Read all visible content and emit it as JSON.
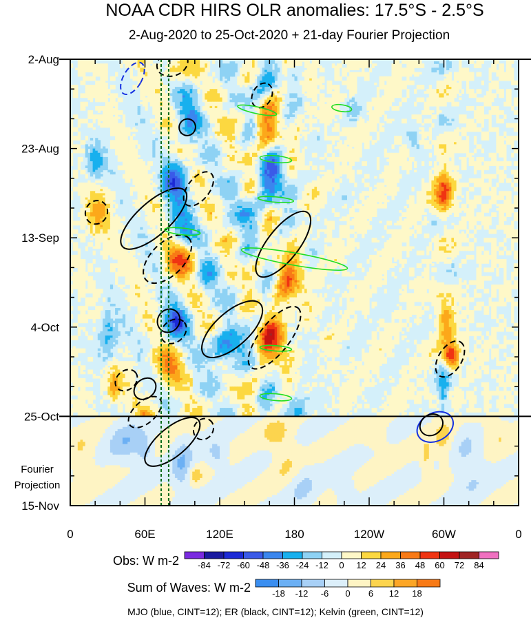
{
  "chart_data": {
    "type": "heatmap",
    "title": "NOAA CDR HIRS OLR anomalies: 17.5°S - 2.5°S",
    "subtitle": "2-Aug-2020 to 25-Oct-2020 + 21-day Fourier Projection",
    "y_tick_labels": [
      "2-Aug",
      "23-Aug",
      "13-Sep",
      "4-Oct",
      "25-Oct",
      "15-Nov"
    ],
    "y_tick_days": [
      0,
      21,
      42,
      63,
      84,
      105
    ],
    "projection_start_day": 84,
    "projection_label": [
      "Fourier",
      "Projection"
    ],
    "x_tick_labels": [
      "0",
      "60E",
      "120E",
      "180",
      "120W",
      "60W",
      "0"
    ],
    "x_tick_lon": [
      0,
      60,
      120,
      180,
      240,
      300,
      360
    ],
    "xlim": [
      0,
      360
    ],
    "ylim_days": [
      0,
      105
    ],
    "reference_lines_lon": [
      73,
      79
    ],
    "obs_colorbar": {
      "label": "Obs: W m-2",
      "levels": [
        -84,
        -72,
        -60,
        -48,
        -36,
        -24,
        -12,
        0,
        12,
        24,
        36,
        48,
        60,
        72,
        84
      ],
      "colors": [
        "#7a2ae0",
        "#1a1aa0",
        "#1c2ad6",
        "#3a5ae8",
        "#3a86ee",
        "#18b0ee",
        "#8ed2f4",
        "#d4f0fa",
        "#fef8c8",
        "#fcd840",
        "#fca81a",
        "#f87a16",
        "#f03412",
        "#c41212",
        "#a02424",
        "#f070c0"
      ]
    },
    "waves_colorbar": {
      "label": "Sum of Waves: W m-2",
      "levels": [
        -18,
        -12,
        -6,
        0,
        6,
        12,
        18
      ],
      "colors": [
        "#3a8ef0",
        "#6cb0f4",
        "#a8d0f6",
        "#dceffa",
        "#fef4c4",
        "#fcd44e",
        "#fca626",
        "#f87a16"
      ]
    },
    "legend_text": "MJO (blue, CINT=12); ER (black, CINT=12); Kelvin (green, CINT=12)",
    "contours": [
      {
        "wave": "MJO",
        "color": "#1530e0",
        "style": "dashed",
        "cx": 50,
        "cy": 4.5,
        "rx": 4.6,
        "ry": 2.6,
        "angle": 30
      },
      {
        "wave": "MJO",
        "color": "#1530e0",
        "style": "solid",
        "cx": 293,
        "cy": 86.5,
        "rx": 7,
        "ry": 2.8,
        "angle": 62
      },
      {
        "wave": "ER",
        "color": "#000000",
        "style": "dashed",
        "cx": 82,
        "cy": 1,
        "rx": 8,
        "ry": 1.8,
        "angle": -22
      },
      {
        "wave": "ER",
        "color": "#000000",
        "style": "dashed",
        "cx": 154,
        "cy": 8.5,
        "rx": 6.5,
        "ry": 1.4,
        "angle": -62
      },
      {
        "wave": "ER",
        "color": "#000000",
        "style": "solid",
        "cx": 94,
        "cy": 16,
        "rx": 4.2,
        "ry": 1.2,
        "angle": -60
      },
      {
        "wave": "ER",
        "color": "#000000",
        "style": "dashed",
        "cx": 21,
        "cy": 36,
        "rx": 6,
        "ry": 1.6,
        "angle": -62
      },
      {
        "wave": "ER",
        "color": "#000000",
        "style": "solid",
        "cx": 67,
        "cy": 37.5,
        "rx": 21,
        "ry": 2.4,
        "angle": -42
      },
      {
        "wave": "ER",
        "color": "#000000",
        "style": "dashed",
        "cx": 103,
        "cy": 30.5,
        "rx": 10,
        "ry": 1.6,
        "angle": -52
      },
      {
        "wave": "ER",
        "color": "#000000",
        "style": "dashed",
        "cx": 78,
        "cy": 47,
        "rx": 15,
        "ry": 2.4,
        "angle": -45
      },
      {
        "wave": "ER",
        "color": "#000000",
        "style": "solid",
        "cx": 171,
        "cy": 43.5,
        "rx": 20,
        "ry": 2.3,
        "angle": -52
      },
      {
        "wave": "ER",
        "color": "#000000",
        "style": "solid",
        "cx": 79,
        "cy": 61.5,
        "rx": 6,
        "ry": 1.6,
        "angle": -55
      },
      {
        "wave": "ER",
        "color": "#000000",
        "style": "dashed",
        "cx": 83,
        "cy": 64,
        "rx": 7,
        "ry": 1.6,
        "angle": -40
      },
      {
        "wave": "ER",
        "color": "#000000",
        "style": "solid",
        "cx": 130,
        "cy": 63.5,
        "rx": 19,
        "ry": 2.5,
        "angle": -42
      },
      {
        "wave": "ER",
        "color": "#000000",
        "style": "dashed",
        "cx": 164,
        "cy": 65.5,
        "rx": 19,
        "ry": 2.2,
        "angle": -52
      },
      {
        "wave": "ER",
        "color": "#000000",
        "style": "dashed",
        "cx": 45,
        "cy": 75.5,
        "rx": 6,
        "ry": 1.4,
        "angle": -40
      },
      {
        "wave": "ER",
        "color": "#000000",
        "style": "solid",
        "cx": 60,
        "cy": 77.5,
        "rx": 6,
        "ry": 1.4,
        "angle": -42
      },
      {
        "wave": "ER",
        "color": "#000000",
        "style": "dashed",
        "cx": 60,
        "cy": 83,
        "rx": 10,
        "ry": 1.6,
        "angle": -42
      },
      {
        "wave": "ER",
        "color": "#000000",
        "style": "dashed",
        "cx": 107,
        "cy": 87,
        "rx": 5.5,
        "ry": 1.4,
        "angle": -55
      },
      {
        "wave": "ER",
        "color": "#000000",
        "style": "solid",
        "cx": 82,
        "cy": 90,
        "rx": 17,
        "ry": 2.1,
        "angle": -40
      },
      {
        "wave": "ER",
        "color": "#000000",
        "style": "dashed",
        "cx": 305,
        "cy": 70.5,
        "rx": 10,
        "ry": 1.7,
        "angle": -58
      },
      {
        "wave": "ER",
        "color": "#000000",
        "style": "solid",
        "cx": 290,
        "cy": 86,
        "rx": 6,
        "ry": 1.5,
        "angle": -35
      },
      {
        "wave": "Kelvin",
        "color": "#22dd22",
        "style": "solid",
        "cx": 150,
        "cy": 12,
        "rx": 10,
        "ry": 0.5,
        "angle": 12
      },
      {
        "wave": "Kelvin",
        "color": "#22dd22",
        "style": "solid",
        "cx": 218,
        "cy": 11.5,
        "rx": 5,
        "ry": 0.5,
        "angle": 8
      },
      {
        "wave": "Kelvin",
        "color": "#22dd22",
        "style": "solid",
        "cx": 165,
        "cy": 23.5,
        "rx": 8,
        "ry": 0.5,
        "angle": 5
      },
      {
        "wave": "Kelvin",
        "color": "#22dd22",
        "style": "solid",
        "cx": 165,
        "cy": 33,
        "rx": 9,
        "ry": 0.4,
        "angle": 5
      },
      {
        "wave": "Kelvin",
        "color": "#22dd22",
        "style": "solid",
        "cx": 90,
        "cy": 40.5,
        "rx": 9,
        "ry": 0.5,
        "angle": 6
      },
      {
        "wave": "Kelvin",
        "color": "#22dd22",
        "style": "solid",
        "cx": 180,
        "cy": 47,
        "rx": 27,
        "ry": 0.9,
        "angle": 10
      },
      {
        "wave": "Kelvin",
        "color": "#22dd22",
        "style": "solid",
        "cx": 165,
        "cy": 68,
        "rx": 8,
        "ry": 0.4,
        "angle": 4
      },
      {
        "wave": "Kelvin",
        "color": "#22dd22",
        "style": "solid",
        "cx": 165,
        "cy": 79.5,
        "rx": 8,
        "ry": 0.5,
        "angle": 5
      }
    ]
  }
}
